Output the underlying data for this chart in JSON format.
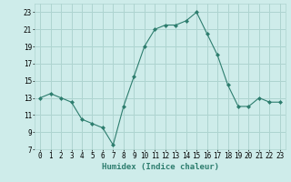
{
  "x": [
    0,
    1,
    2,
    3,
    4,
    5,
    6,
    7,
    8,
    9,
    10,
    11,
    12,
    13,
    14,
    15,
    16,
    17,
    18,
    19,
    20,
    21,
    22,
    23
  ],
  "y": [
    13,
    13.5,
    13,
    12.5,
    10.5,
    10,
    9.5,
    7.5,
    12,
    15.5,
    19,
    21,
    21.5,
    21.5,
    22,
    23,
    20.5,
    18,
    14.5,
    12,
    12,
    13,
    12.5,
    12.5
  ],
  "line_color": "#2d7d6e",
  "marker": "D",
  "marker_size": 2,
  "bg_color": "#ceecea",
  "grid_color": "#aed4d0",
  "xlabel": "Humidex (Indice chaleur)",
  "ylim": [
    7,
    24
  ],
  "yticks": [
    7,
    9,
    11,
    13,
    15,
    17,
    19,
    21,
    23
  ],
  "xticks": [
    0,
    1,
    2,
    3,
    4,
    5,
    6,
    7,
    8,
    9,
    10,
    11,
    12,
    13,
    14,
    15,
    16,
    17,
    18,
    19,
    20,
    21,
    22,
    23
  ],
  "xlim": [
    -0.5,
    23.5
  ],
  "label_fontsize": 6.5,
  "tick_fontsize": 5.5
}
